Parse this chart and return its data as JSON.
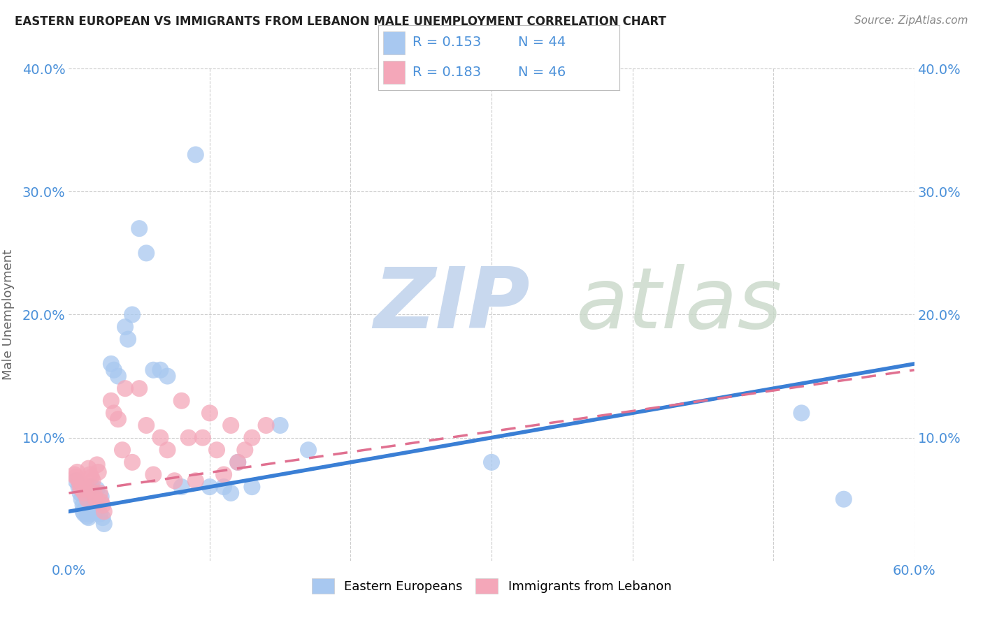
{
  "title": "EASTERN EUROPEAN VS IMMIGRANTS FROM LEBANON MALE UNEMPLOYMENT CORRELATION CHART",
  "source": "Source: ZipAtlas.com",
  "ylabel": "Male Unemployment",
  "xlim": [
    0.0,
    0.6
  ],
  "ylim": [
    0.0,
    0.4
  ],
  "r_blue": 0.153,
  "n_blue": 44,
  "r_pink": 0.183,
  "n_pink": 46,
  "blue_color": "#a8c8f0",
  "pink_color": "#f4a7b9",
  "blue_line_color": "#3a7fd5",
  "pink_line_color": "#e07090",
  "background_color": "#ffffff",
  "grid_color": "#cccccc",
  "blue_trend_x": [
    0.0,
    0.6
  ],
  "blue_trend_y": [
    0.04,
    0.16
  ],
  "pink_trend_x": [
    0.0,
    0.6
  ],
  "pink_trend_y": [
    0.055,
    0.155
  ],
  "blue_x": [
    0.005,
    0.007,
    0.008,
    0.009,
    0.01,
    0.01,
    0.011,
    0.012,
    0.013,
    0.014,
    0.015,
    0.016,
    0.017,
    0.018,
    0.019,
    0.02,
    0.021,
    0.022,
    0.023,
    0.024,
    0.025,
    0.03,
    0.032,
    0.035,
    0.04,
    0.042,
    0.045,
    0.05,
    0.055,
    0.06,
    0.065,
    0.07,
    0.08,
    0.09,
    0.1,
    0.11,
    0.115,
    0.12,
    0.13,
    0.15,
    0.17,
    0.3,
    0.52,
    0.55
  ],
  "blue_y": [
    0.065,
    0.06,
    0.055,
    0.05,
    0.045,
    0.04,
    0.038,
    0.042,
    0.036,
    0.035,
    0.038,
    0.06,
    0.055,
    0.05,
    0.04,
    0.058,
    0.042,
    0.038,
    0.052,
    0.035,
    0.03,
    0.16,
    0.155,
    0.15,
    0.19,
    0.18,
    0.2,
    0.27,
    0.25,
    0.155,
    0.155,
    0.15,
    0.06,
    0.33,
    0.06,
    0.06,
    0.055,
    0.08,
    0.06,
    0.11,
    0.09,
    0.08,
    0.12,
    0.05
  ],
  "pink_x": [
    0.004,
    0.005,
    0.006,
    0.007,
    0.008,
    0.009,
    0.01,
    0.011,
    0.012,
    0.013,
    0.014,
    0.015,
    0.016,
    0.017,
    0.018,
    0.019,
    0.02,
    0.021,
    0.022,
    0.023,
    0.024,
    0.025,
    0.03,
    0.032,
    0.035,
    0.038,
    0.04,
    0.045,
    0.05,
    0.055,
    0.06,
    0.065,
    0.07,
    0.075,
    0.08,
    0.085,
    0.09,
    0.095,
    0.1,
    0.105,
    0.11,
    0.115,
    0.12,
    0.125,
    0.13,
    0.14
  ],
  "pink_y": [
    0.07,
    0.068,
    0.072,
    0.065,
    0.06,
    0.058,
    0.062,
    0.055,
    0.058,
    0.05,
    0.075,
    0.07,
    0.068,
    0.065,
    0.055,
    0.05,
    0.078,
    0.072,
    0.055,
    0.048,
    0.045,
    0.04,
    0.13,
    0.12,
    0.115,
    0.09,
    0.14,
    0.08,
    0.14,
    0.11,
    0.07,
    0.1,
    0.09,
    0.065,
    0.13,
    0.1,
    0.065,
    0.1,
    0.12,
    0.09,
    0.07,
    0.11,
    0.08,
    0.09,
    0.1,
    0.11
  ]
}
